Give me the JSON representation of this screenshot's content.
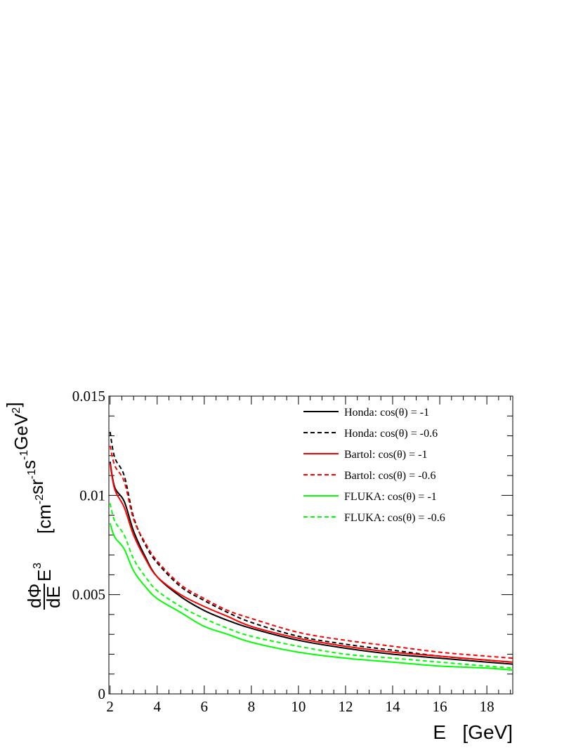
{
  "chart_data": {
    "type": "line",
    "xlabel": "E   [GeV]",
    "ylabel": {
      "numerator": "dΦ",
      "denominator": "dE",
      "factor": "E",
      "factor_exp": "3",
      "unit_parts": [
        {
          "text": "[cm",
          "sup": "-2"
        },
        {
          "text": "sr",
          "sup": "-1"
        },
        {
          "text": "s",
          "sup": "-1"
        },
        {
          "text": "GeV",
          "sup": "2"
        },
        {
          "text": "]",
          "sup": ""
        }
      ]
    },
    "xlim": [
      1.95,
      19.1
    ],
    "ylim": [
      0,
      0.015
    ],
    "x_ticks": [
      2,
      4,
      6,
      8,
      10,
      12,
      14,
      16,
      18
    ],
    "x_tick_labels": [
      "2",
      "4",
      "6",
      "8",
      "10",
      "12",
      "14",
      "16",
      "18"
    ],
    "y_ticks": [
      0,
      0.005,
      0.01,
      0.015
    ],
    "y_tick_labels": [
      "0",
      "0.005",
      "0.01",
      "0.015"
    ],
    "grid": false,
    "legend_position": "top-right",
    "x": [
      2.0,
      2.2,
      2.6,
      3.0,
      3.5,
      4.0,
      5.0,
      6.0,
      7.0,
      8.0,
      10.0,
      12.0,
      14.0,
      16.0,
      18.0,
      19.1
    ],
    "series": [
      {
        "name": "Honda:  cos(θ) = -1",
        "color": "#000000",
        "dash": "solid",
        "values": [
          0.0117,
          0.0104,
          0.0097,
          0.0082,
          0.0069,
          0.0059,
          0.0049,
          0.0042,
          0.0037,
          0.0033,
          0.0027,
          0.0023,
          0.002,
          0.0018,
          0.0016,
          0.0015
        ]
      },
      {
        "name": "Honda:  cos(θ) = -0.6",
        "color": "#000000",
        "dash": "dashed",
        "values": [
          0.0132,
          0.0119,
          0.011,
          0.0089,
          0.0075,
          0.0066,
          0.0054,
          0.0047,
          0.0041,
          0.0036,
          0.0029,
          0.0025,
          0.0022,
          0.0019,
          0.0017,
          0.0016
        ]
      },
      {
        "name": "Bartol: cos(θ) = -1",
        "color": "#ff0000",
        "dash": "solid",
        "values": [
          0.0116,
          0.0103,
          0.0094,
          0.008,
          0.0068,
          0.0059,
          0.005,
          0.0044,
          0.0039,
          0.0034,
          0.0028,
          0.0024,
          0.0021,
          0.0019,
          0.0017,
          0.0016
        ]
      },
      {
        "name": "Bartol: cos(θ) = -0.6",
        "color": "#ff0000",
        "dash": "dashed",
        "values": [
          0.0125,
          0.0115,
          0.0107,
          0.0088,
          0.0076,
          0.0067,
          0.0055,
          0.0048,
          0.0042,
          0.0038,
          0.0031,
          0.0027,
          0.0024,
          0.0021,
          0.0019,
          0.0018
        ]
      },
      {
        "name": "FLUKA:  cos(θ) = -1",
        "color": "#00ff00",
        "dash": "solid",
        "values": [
          0.0086,
          0.0079,
          0.0073,
          0.0062,
          0.0054,
          0.0048,
          0.0041,
          0.0034,
          0.003,
          0.0026,
          0.0021,
          0.0018,
          0.0016,
          0.0014,
          0.0013,
          0.0012
        ]
      },
      {
        "name": "FLUKA:  cos(θ) = -0.6",
        "color": "#00ff00",
        "dash": "dashed",
        "values": [
          0.0096,
          0.0087,
          0.008,
          0.0068,
          0.0059,
          0.0052,
          0.0044,
          0.0038,
          0.0033,
          0.0029,
          0.0024,
          0.002,
          0.0018,
          0.0016,
          0.0014,
          0.0013
        ]
      }
    ]
  }
}
